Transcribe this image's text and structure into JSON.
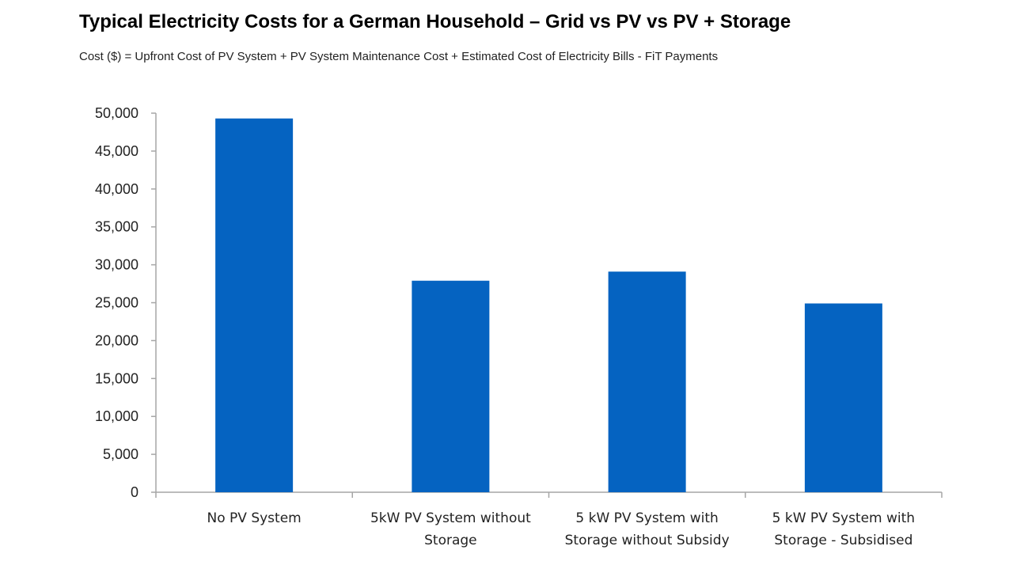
{
  "chart_data": {
    "type": "bar",
    "title": "Typical Electricity Costs for a German Household – Grid vs PV vs PV + Storage",
    "subtitle": "Cost ($) = Upfront Cost of PV System + PV System Maintenance Cost + Estimated Cost of Electricity Bills - FiT Payments",
    "categories": [
      [
        "No PV System"
      ],
      [
        "5kW PV System without",
        "Storage"
      ],
      [
        "5 kW PV System with",
        "Storage without Subsidy"
      ],
      [
        "5 kW PV System with",
        "Storage - Subsidised"
      ]
    ],
    "values": [
      49300,
      27900,
      29100,
      24900
    ],
    "ylim": [
      0,
      50000
    ],
    "yticks": [
      0,
      5000,
      10000,
      15000,
      20000,
      25000,
      30000,
      35000,
      40000,
      45000,
      50000
    ],
    "ytick_labels": [
      "0",
      "5,000",
      "10,000",
      "15,000",
      "20,000",
      "25,000",
      "30,000",
      "35,000",
      "40,000",
      "45,000",
      "50,000"
    ],
    "grid": false,
    "legend": "none",
    "bar_color": "#0563C1",
    "axis_color": "#a6a6a6"
  }
}
